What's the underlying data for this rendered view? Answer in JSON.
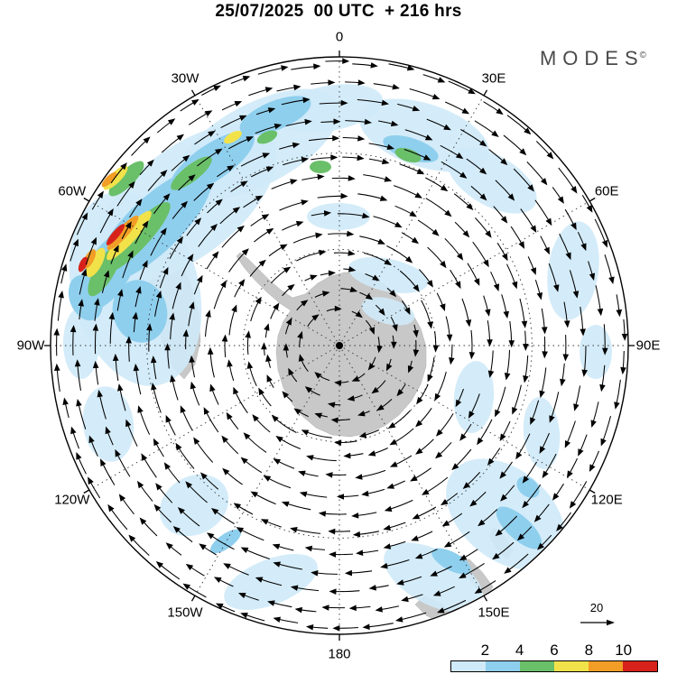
{
  "title": "25/07/2025  00 UTC  + 216 hrs",
  "logo": {
    "text": "MODES",
    "copyright": "©"
  },
  "longitude_labels": [
    {
      "label": "0",
      "deg": 0
    },
    {
      "label": "30E",
      "deg": 30
    },
    {
      "label": "60E",
      "deg": 60
    },
    {
      "label": "90E",
      "deg": 90
    },
    {
      "label": "120E",
      "deg": 120
    },
    {
      "label": "150E",
      "deg": 150
    },
    {
      "label": "180",
      "deg": 180
    },
    {
      "label": "150W",
      "deg": 210
    },
    {
      "label": "120W",
      "deg": 240
    },
    {
      "label": "90W",
      "deg": 270
    },
    {
      "label": "60W",
      "deg": 300
    },
    {
      "label": "30W",
      "deg": 330
    }
  ],
  "legend": {
    "tick_labels": [
      "2",
      "4",
      "6",
      "8",
      "10"
    ],
    "colors": [
      "#cfeaf8",
      "#8fcfee",
      "#6abf69",
      "#f2e24a",
      "#f29d26",
      "#d7221c"
    ]
  },
  "reference_arrow": {
    "label": "20"
  },
  "chart_data": {
    "type": "heatmap",
    "title": "25/07/2025 00 UTC + 216 hrs",
    "projection": "south polar stereographic (0 at top, 180 at bottom, east longitudes clockwise)",
    "description": "Circumpolar wind vector field (clockwise/eastward arrows around Antarctica) with shaded scalar intensity field; strongest maximum (red/orange, >10) located near 60W at mid-latitudes, scattered light-blue minima elsewhere.",
    "colorbar": {
      "tick_values": [
        2,
        4,
        6,
        8,
        10
      ],
      "n_segments": 6,
      "colors": [
        "#cfeaf8",
        "#8fcfee",
        "#6abf69",
        "#f2e24a",
        "#f29d26",
        "#d7221c"
      ]
    },
    "wind": {
      "reference_value": 20,
      "direction": "clockwise",
      "rings": 14,
      "inner_radius_frac": 0.13,
      "outer_radius_frac": 0.98
    },
    "longitude_ticks_deg": [
      0,
      30,
      60,
      90,
      120,
      150,
      180,
      210,
      240,
      270,
      300,
      330
    ],
    "shaded_regions": [
      [
        205,
        225,
        120,
        60,
        -38,
        1
      ],
      [
        150,
        320,
        70,
        110,
        -15,
        1
      ],
      [
        285,
        160,
        100,
        45,
        -28,
        1
      ],
      [
        365,
        120,
        60,
        25,
        -10,
        1
      ],
      [
        470,
        150,
        75,
        35,
        18,
        1
      ],
      [
        545,
        200,
        55,
        28,
        30,
        1
      ],
      [
        430,
        305,
        45,
        18,
        12,
        1
      ],
      [
        525,
        440,
        22,
        40,
        5,
        1
      ],
      [
        635,
        300,
        28,
        55,
        8,
        1
      ],
      [
        600,
        480,
        20,
        40,
        -5,
        1
      ],
      [
        560,
        570,
        75,
        50,
        40,
        1
      ],
      [
        480,
        640,
        60,
        30,
        28,
        1
      ],
      [
        300,
        645,
        55,
        25,
        -22,
        1
      ],
      [
        215,
        560,
        40,
        32,
        -30,
        1
      ],
      [
        120,
        470,
        28,
        42,
        -8,
        1
      ],
      [
        90,
        380,
        20,
        40,
        0,
        1
      ],
      [
        660,
        390,
        18,
        30,
        0,
        1
      ],
      [
        375,
        240,
        35,
        15,
        0,
        1
      ],
      [
        430,
        345,
        30,
        14,
        15,
        1
      ],
      [
        170,
        250,
        85,
        30,
        -44,
        2
      ],
      [
        120,
        300,
        50,
        24,
        -58,
        2
      ],
      [
        235,
        180,
        55,
        20,
        -34,
        2
      ],
      [
        305,
        128,
        42,
        16,
        -22,
        2
      ],
      [
        455,
        165,
        32,
        12,
        18,
        2
      ],
      [
        575,
        585,
        32,
        13,
        42,
        2
      ],
      [
        500,
        622,
        24,
        10,
        28,
        2
      ],
      [
        250,
        600,
        20,
        8,
        -35,
        2
      ],
      [
        585,
        540,
        14,
        10,
        40,
        2
      ],
      [
        155,
        345,
        30,
        35,
        -15,
        2
      ],
      [
        95,
        330,
        18,
        26,
        -20,
        2
      ],
      [
        152,
        263,
        52,
        13,
        -47,
        3
      ],
      [
        116,
        300,
        32,
        11,
        -60,
        3
      ],
      [
        212,
        192,
        28,
        9,
        -38,
        3
      ],
      [
        140,
        198,
        26,
        9,
        -45,
        3
      ],
      [
        355,
        185,
        12,
        7,
        0,
        3
      ],
      [
        452,
        172,
        15,
        7,
        18,
        3
      ],
      [
        296,
        152,
        12,
        6,
        -25,
        3
      ],
      [
        143,
        261,
        36,
        8,
        -48,
        4
      ],
      [
        128,
        197,
        18,
        6,
        -45,
        4
      ],
      [
        106,
        291,
        18,
        7,
        -62,
        4
      ],
      [
        258,
        152,
        11,
        5,
        -30,
        4
      ],
      [
        136,
        258,
        25,
        6,
        -48,
        5
      ],
      [
        121,
        199,
        11,
        4,
        -45,
        5
      ],
      [
        99,
        287,
        12,
        5,
        -62,
        5
      ],
      [
        128,
        260,
        15,
        4,
        -50,
        6
      ],
      [
        92,
        293,
        9,
        4,
        -66,
        6
      ]
    ]
  }
}
